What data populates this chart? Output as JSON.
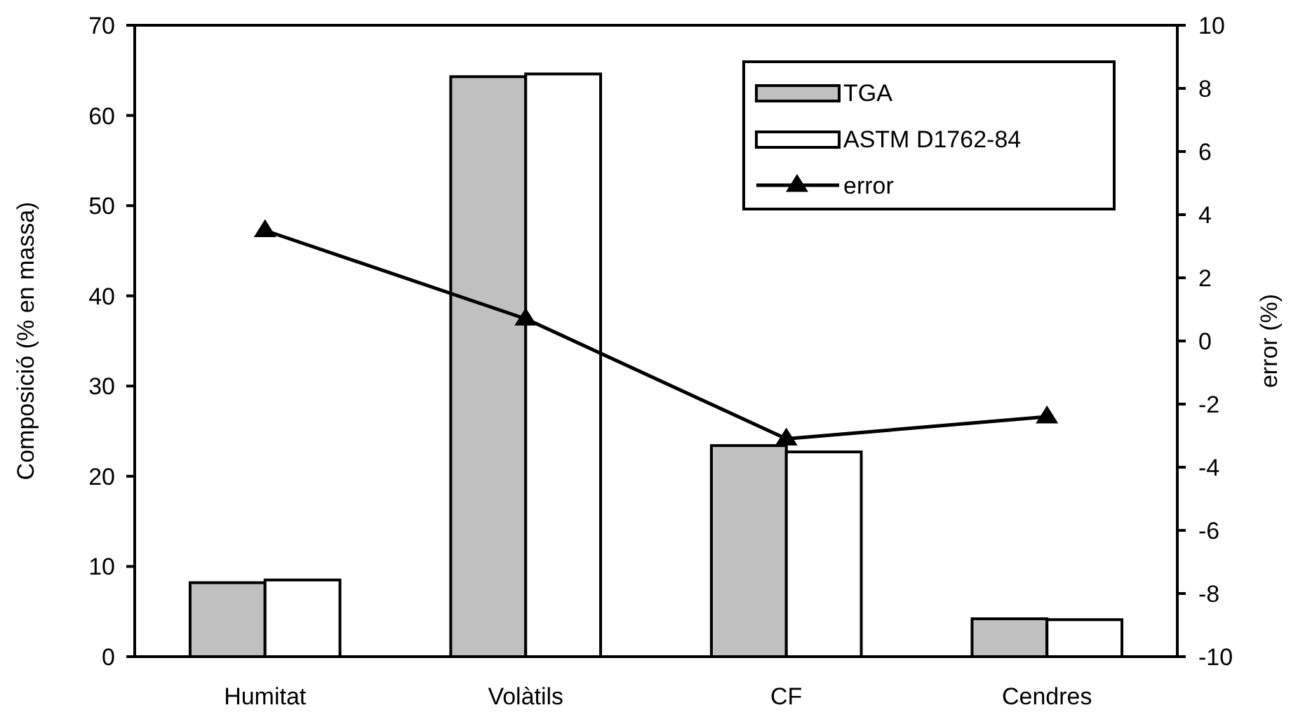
{
  "chart_data": {
    "type": "bar",
    "categories": [
      "Humitat",
      "Volàtils",
      "CF",
      "Cendres"
    ],
    "ylabel": "Composició (% en massa)",
    "y2label": "error (%)",
    "ylim": [
      0,
      70
    ],
    "yticks": [
      0,
      10,
      20,
      30,
      40,
      50,
      60,
      70
    ],
    "y2lim": [
      -10,
      10
    ],
    "y2ticks": [
      -10,
      -8,
      -6,
      -4,
      -2,
      0,
      2,
      4,
      6,
      8,
      10
    ],
    "legend": "top right",
    "grid": false,
    "series": [
      {
        "name": "TGA",
        "color": "#c0c0c0",
        "values": [
          8.2,
          64.3,
          23.4,
          4.2
        ]
      },
      {
        "name": "ASTM D1762-84",
        "color": "#ffffff",
        "values": [
          8.5,
          64.6,
          22.7,
          4.1
        ]
      },
      {
        "name": "error",
        "type": "line",
        "axis": "y2",
        "color": "#000000",
        "marker": "triangle",
        "values": [
          3.5,
          0.7,
          -3.1,
          -2.4
        ]
      }
    ]
  }
}
